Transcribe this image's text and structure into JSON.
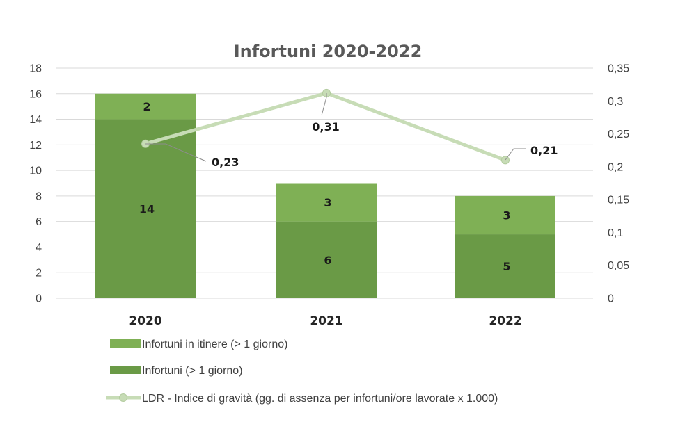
{
  "chart_data": {
    "type": "bar",
    "stacked": true,
    "title": "Infortuni 2020-2022",
    "categories": [
      "2020",
      "2021",
      "2022"
    ],
    "series": [
      {
        "name": "Infortuni (> 1 giorno)",
        "type": "bar",
        "axis": "left",
        "color": "#6a9a46",
        "values": [
          14,
          6,
          5
        ],
        "labels": [
          "14",
          "6",
          "5"
        ]
      },
      {
        "name": "Infortuni in itinere (> 1 giorno)",
        "type": "bar",
        "axis": "left",
        "color": "#7fb055",
        "values": [
          2,
          3,
          3
        ],
        "labels": [
          "2",
          "3",
          "3"
        ]
      },
      {
        "name": "LDR - Indice di gravità (gg. di assenza per infortuni/ore lavorate x 1.000)",
        "type": "line",
        "axis": "right",
        "color": "#c7dcb6",
        "values": [
          0.235,
          0.312,
          0.21
        ],
        "labels": [
          "0,23",
          "0,31",
          "0,21"
        ]
      }
    ],
    "left_axis": {
      "ylim": [
        0,
        18
      ],
      "ticks": [
        "0",
        "2",
        "4",
        "6",
        "8",
        "10",
        "12",
        "14",
        "16",
        "18"
      ]
    },
    "right_axis": {
      "ylim": [
        0,
        0.35
      ],
      "ticks": [
        "0",
        "0,05",
        "0,1",
        "0,15",
        "0,2",
        "0,25",
        "0,3",
        "0,35"
      ]
    },
    "grid": true,
    "legend_position": "bottom-left"
  }
}
